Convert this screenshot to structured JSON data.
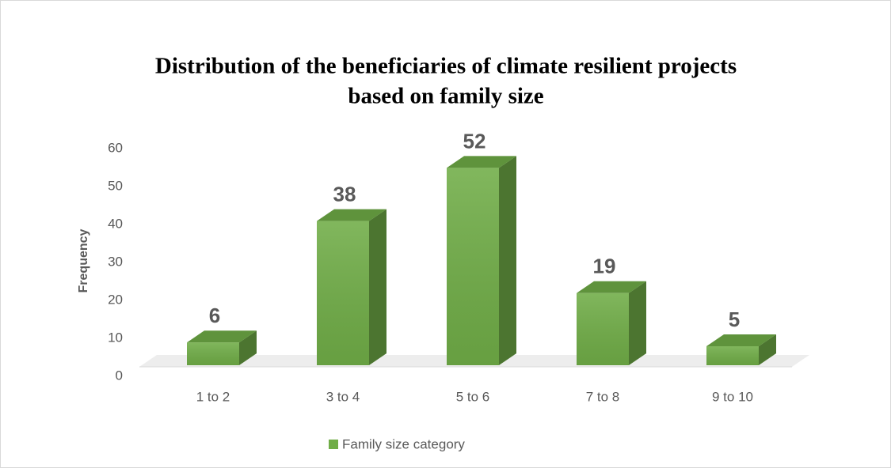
{
  "chart_data": {
    "type": "bar3d",
    "title": "Distribution of the beneficiaries of climate resilient projects",
    "subtitle": "based on family size",
    "y_label": "Frequency",
    "categories": [
      "1 to 2",
      "3 to 4",
      "5 to 6",
      "7 to 8",
      "9 to 10"
    ],
    "series": [
      {
        "name": "Family size category",
        "color": "#70ad47",
        "values": [
          6,
          38,
          52,
          19,
          5
        ]
      }
    ],
    "ylim": [
      0,
      60
    ],
    "yticks": [
      0,
      10,
      20,
      30,
      40,
      50,
      60
    ],
    "legend": "bottom"
  }
}
